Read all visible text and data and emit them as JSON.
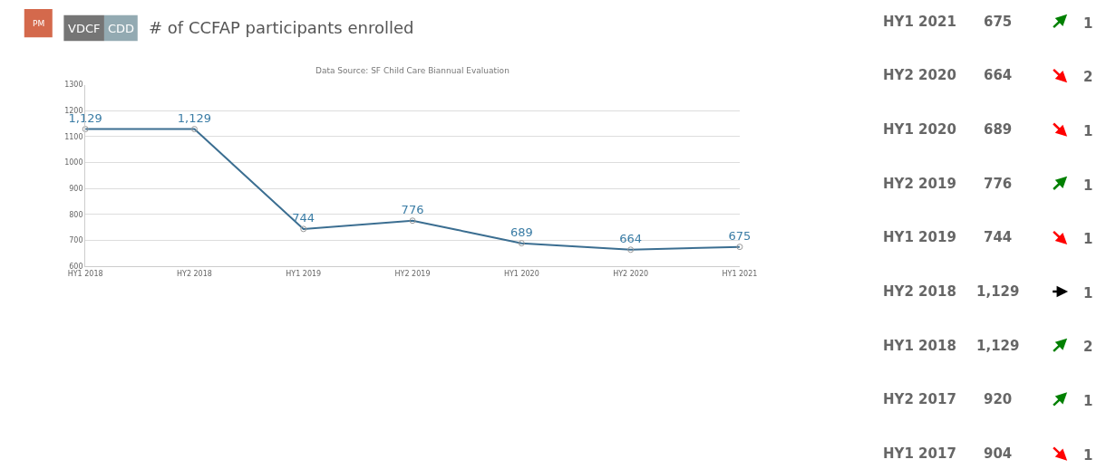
{
  "chart_data": [
    {
      "type": "line",
      "title": "# of CCFAP participants enrolled",
      "subtitle": "Data Source: SF Child Care Biannual Evaluation",
      "annotations": [
        "PM",
        "VDCF",
        "CDD"
      ],
      "categories": [
        "HY1 2018",
        "HY2 2018",
        "HY1 2019",
        "HY2 2019",
        "HY1 2020",
        "HY2 2020",
        "HY1 2021"
      ],
      "series": [
        {
          "color": "#3b6e91",
          "values": [
            1129,
            1129,
            744,
            776,
            689,
            664,
            675
          ],
          "value_labels": [
            "1,129",
            "1,129",
            "744",
            "776",
            "689",
            "664",
            "675"
          ]
        }
      ],
      "ylim": [
        600,
        1300
      ],
      "yticks": [
        600,
        700,
        800,
        900,
        1000,
        1100,
        1200,
        1300
      ],
      "grid": "y",
      "marker": "circle",
      "line_style": "solid"
    },
    {
      "type": "other",
      "categories": [
        "HY1 2021",
        "HY2 2020",
        "HY1 2020",
        "HY2 2019",
        "HY1 2019",
        "HY2 2018",
        "HY1 2018",
        "HY2 2017",
        "HY1 2017"
      ],
      "value_labels": [
        "675",
        "664",
        "689",
        "776",
        "744",
        "1,129",
        "1,129",
        "920",
        "904"
      ],
      "colors": [
        "#008000",
        "#ff0000",
        "#ff0000",
        "#008000",
        "#ff0000",
        "#000000",
        "#008000",
        "#008000",
        "#ff0000"
      ],
      "annotations": [
        "1",
        "2",
        "1",
        "1",
        "1",
        "1",
        "2",
        "1",
        "1"
      ]
    }
  ]
}
